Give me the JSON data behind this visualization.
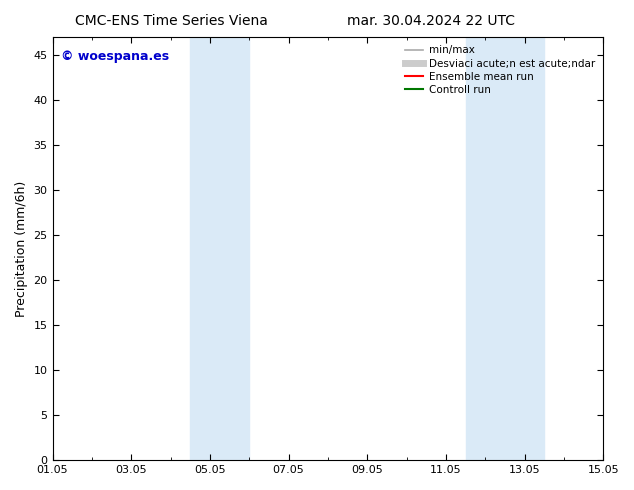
{
  "title_left": "CMC-ENS Time Series Viena",
  "title_right": "mar. 30.04.2024 22 UTC",
  "ylabel": "Precipitation (mm/6h)",
  "ylim": [
    0,
    47
  ],
  "yticks": [
    0,
    5,
    10,
    15,
    20,
    25,
    30,
    35,
    40,
    45
  ],
  "xtick_labels": [
    "01.05",
    "03.05",
    "05.05",
    "07.05",
    "09.05",
    "11.05",
    "13.05",
    "15.05"
  ],
  "xtick_positions": [
    0,
    2,
    4,
    6,
    8,
    10,
    12,
    14
  ],
  "xlim": [
    0,
    14
  ],
  "shaded_regions": [
    {
      "x_start": 3.5,
      "x_end": 5.0
    },
    {
      "x_start": 10.5,
      "x_end": 12.5
    }
  ],
  "shaded_color": "#daeaf7",
  "background_color": "#ffffff",
  "watermark_text": "© woespana.es",
  "watermark_color": "#0000cc",
  "legend_entries": [
    {
      "label": "min/max",
      "color": "#aaaaaa",
      "lw": 1.2,
      "linestyle": "-"
    },
    {
      "label": "Desviaci acute;n est acute;ndar",
      "color": "#cccccc",
      "lw": 5,
      "linestyle": "-"
    },
    {
      "label": "Ensemble mean run",
      "color": "#ff0000",
      "lw": 1.5,
      "linestyle": "-"
    },
    {
      "label": "Controll run",
      "color": "#007700",
      "lw": 1.5,
      "linestyle": "-"
    }
  ],
  "title_fontsize": 10,
  "tick_fontsize": 8,
  "ylabel_fontsize": 9,
  "legend_fontsize": 7.5,
  "watermark_fontsize": 9
}
